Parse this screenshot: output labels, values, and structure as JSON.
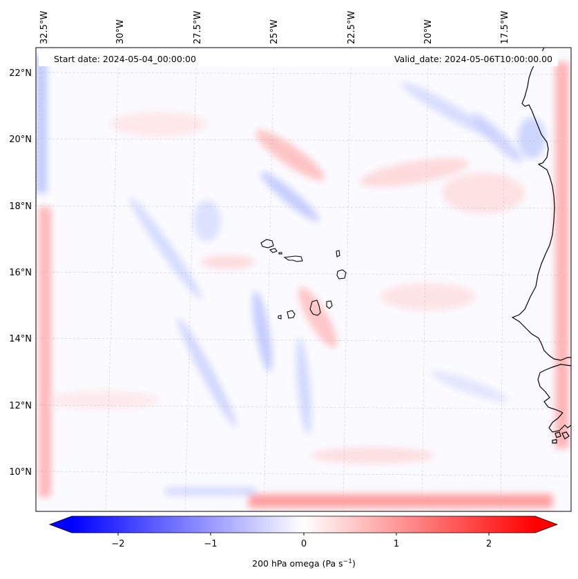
{
  "map": {
    "start_date_label": "Start date: 2024-05-04_00:00:00",
    "valid_date_label": "Valid_date: 2024-05-06T10:00:00.00",
    "field": "200 hPa omega",
    "units": "Pa s",
    "units_exponent": "−1",
    "lon_labels": [
      "32.5°W",
      "30°W",
      "27.5°W",
      "25°W",
      "22.5°W",
      "20°W",
      "17.5°W"
    ],
    "lat_labels": [
      "22°N",
      "20°N",
      "18°N",
      "16°N",
      "14°N",
      "12°N",
      "10°N"
    ],
    "colorbar_ticks": [
      "−2",
      "−1",
      "0",
      "1",
      "2"
    ],
    "colorbar_range": [
      -2.75,
      2.75
    ],
    "colormap": {
      "low": "#0000ff",
      "mid": "#ffffff",
      "high": "#ff0000"
    },
    "coastline_color": "#000000",
    "gridlines": true
  }
}
